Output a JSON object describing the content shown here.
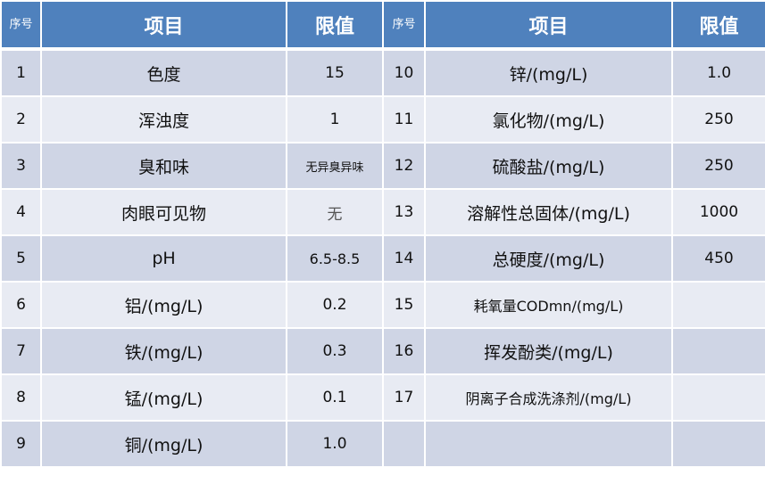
{
  "header": {
    "seq": "序号",
    "item": "项目",
    "limit": "限值"
  },
  "left_rows": [
    {
      "no": "1",
      "item": "色度",
      "limit": "15"
    },
    {
      "no": "2",
      "item": "浑浊度",
      "limit": "1"
    },
    {
      "no": "3",
      "item": "臭和味",
      "limit": "无异臭异味"
    },
    {
      "no": "4",
      "item": "肉眼可见物",
      "limit": "无"
    },
    {
      "no": "5",
      "item": "pH",
      "limit": "6.5-8.5"
    },
    {
      "no": "6",
      "item": "铝/(mg/L)",
      "limit": "0.2"
    },
    {
      "no": "7",
      "item": "铁/(mg/L)",
      "limit": "0.3"
    },
    {
      "no": "8",
      "item": "锰/(mg/L)",
      "limit": "0.1"
    },
    {
      "no": "9",
      "item": "铜/(mg/L)",
      "limit": "1.0"
    }
  ],
  "right_rows": [
    {
      "no": "10",
      "item": "锌/(mg/L)",
      "limit": "1.0"
    },
    {
      "no": "11",
      "item": "氯化物/(mg/L)",
      "limit": "250"
    },
    {
      "no": "12",
      "item": "硫酸盐/(mg/L)",
      "limit": "250"
    },
    {
      "no": "13",
      "item": "溶解性总固体/(mg/L)",
      "limit": "1000"
    },
    {
      "no": "14",
      "item": "总硬度/(mg/L)",
      "limit": "450"
    },
    {
      "no": "15",
      "item": "耗氧量CODmn/(mg/L)",
      "limit": ""
    },
    {
      "no": "16",
      "item": "挥发酚类/(mg/L)",
      "limit": ""
    },
    {
      "no": "17",
      "item": "阴离子合成洗涤剂/(mg/L)",
      "limit": ""
    },
    {
      "no": "",
      "item": "",
      "limit": ""
    }
  ],
  "colors": {
    "header": "#4f81bd",
    "row_dark": "#cfd5e5",
    "row_light": "#e8ebf3"
  }
}
